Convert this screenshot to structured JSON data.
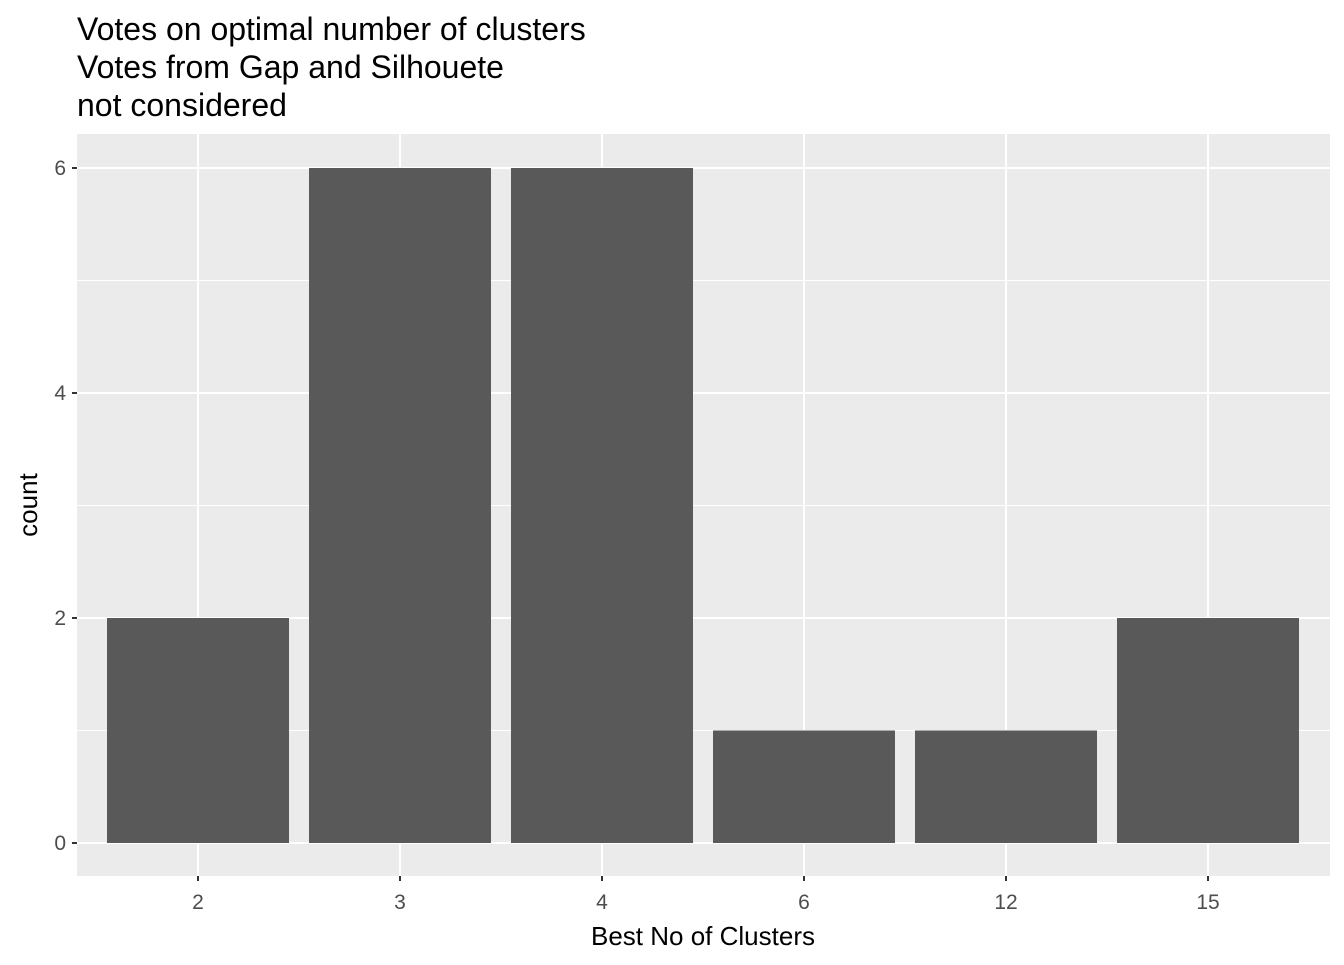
{
  "chart_data": {
    "type": "bar",
    "title_lines": [
      "Votes on optimal number of clusters",
      "Votes from Gap and Silhouete",
      "not considered"
    ],
    "xlabel": "Best No of Clusters",
    "ylabel": "count",
    "categories": [
      "2",
      "3",
      "4",
      "6",
      "12",
      "15"
    ],
    "values": [
      2,
      6,
      6,
      1,
      1,
      2
    ],
    "ylim": [
      0,
      6
    ],
    "yticks": [
      0,
      2,
      4,
      6
    ],
    "grid": true,
    "legend": "none",
    "colors": {
      "panel_background": "#EBEBEB",
      "grid_major": "#FFFFFF",
      "bar_fill": "#595959",
      "tick_text": "#4D4D4D",
      "tick_mark": "#333333"
    }
  }
}
